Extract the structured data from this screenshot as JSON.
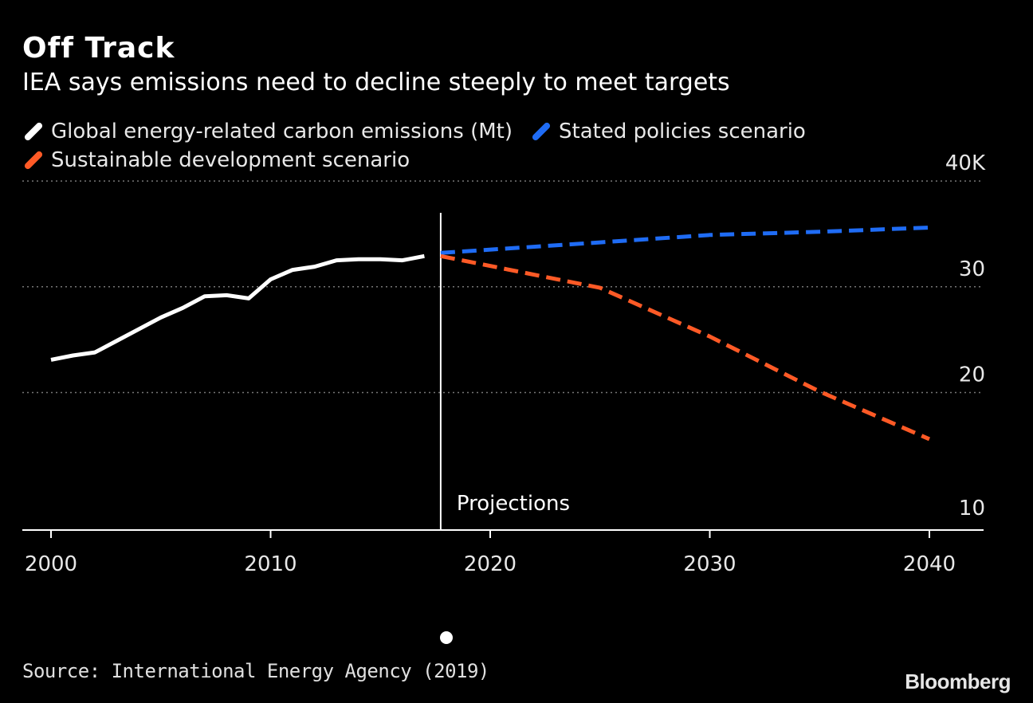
{
  "header": {
    "title": "Off Track",
    "subtitle": "IEA says emissions need to decline steeply to meet targets"
  },
  "footer": {
    "source": "Source: International Energy Agency (2019)",
    "brand": "Bloomberg"
  },
  "colors": {
    "background": "#000000",
    "historical": "#ffffff",
    "stated": "#1f6cf5",
    "sustainable": "#ff5a26",
    "grid": "#777777"
  },
  "chart_data": {
    "type": "line",
    "title": "Off Track",
    "subtitle": "IEA says emissions need to decline steeply to meet targets",
    "xlim": [
      1999,
      2042
    ],
    "ylim": [
      10,
      40
    ],
    "y_axis_side": "right",
    "x_ticks": [
      2000,
      2010,
      2020,
      2030,
      2040
    ],
    "x_tick_labels": [
      "2000",
      "2010",
      "2020",
      "2030",
      "2040"
    ],
    "y_ticks": [
      10,
      20,
      30,
      40
    ],
    "y_tick_labels": [
      "10",
      "20",
      "30",
      "40K"
    ],
    "grid": "horizontal dotted",
    "legend_position": "top-left",
    "annotations": [
      {
        "type": "vertical-line",
        "x": 2018,
        "label": "Projections"
      }
    ],
    "series": [
      {
        "name": "Global energy-related carbon emissions (Mt)",
        "style": "solid",
        "color": "#ffffff",
        "x": [
          2000,
          2001,
          2002,
          2003,
          2004,
          2005,
          2006,
          2007,
          2008,
          2009,
          2010,
          2011,
          2012,
          2013,
          2014,
          2015,
          2016,
          2017
        ],
        "y": [
          23.1,
          23.5,
          23.8,
          24.9,
          26.0,
          27.1,
          28.0,
          29.1,
          29.2,
          28.9,
          30.7,
          31.6,
          31.9,
          32.5,
          32.6,
          32.6,
          32.5,
          32.9
        ]
      },
      {
        "name": "Stated policies scenario",
        "style": "dashed",
        "color": "#1f6cf5",
        "x": [
          2018,
          2025,
          2030,
          2035,
          2040
        ],
        "y": [
          33.2,
          34.2,
          34.9,
          35.2,
          35.6
        ]
      },
      {
        "name": "Sustainable development scenario",
        "style": "dashed",
        "color": "#ff5a26",
        "x": [
          2018,
          2025,
          2030,
          2035,
          2040
        ],
        "y": [
          32.9,
          29.9,
          25.3,
          20.1,
          15.6
        ]
      }
    ]
  }
}
